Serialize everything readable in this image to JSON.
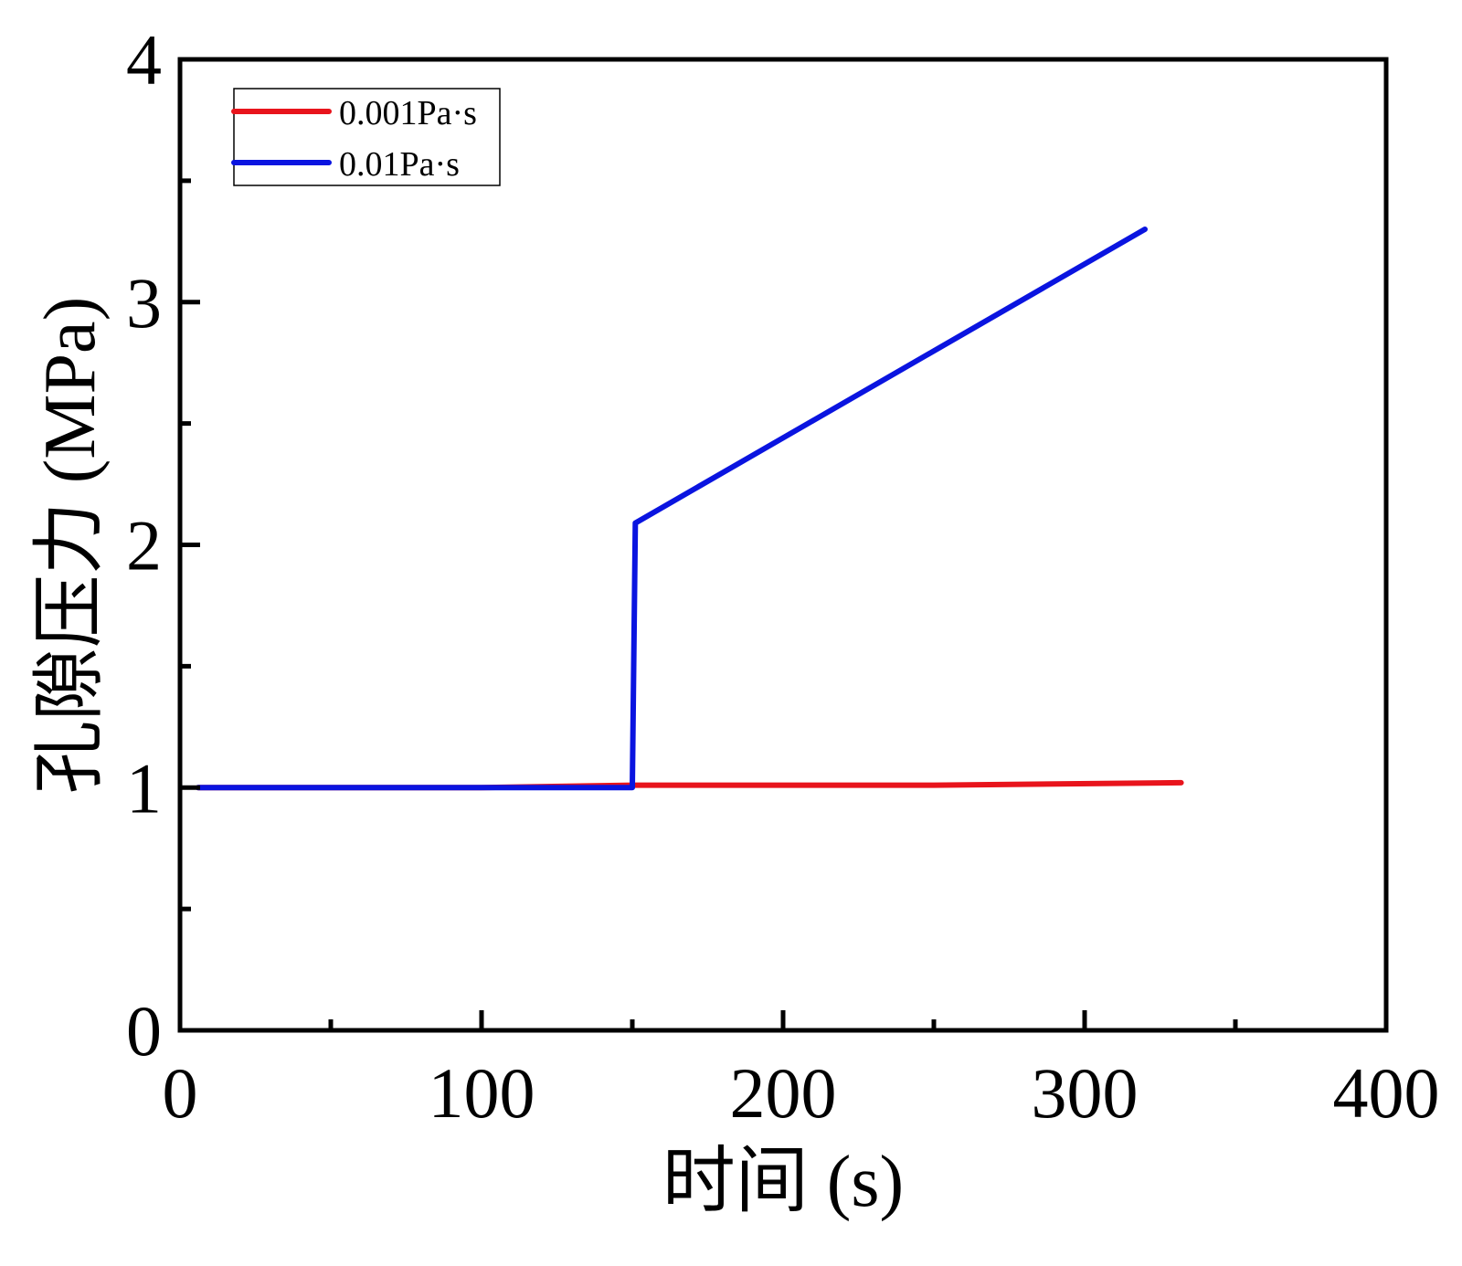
{
  "chart_data": {
    "type": "line",
    "title": "",
    "xlabel": "时间 (s)",
    "ylabel": "孔隙压力 (MPa)",
    "xlim": [
      0,
      400
    ],
    "ylim": [
      0,
      4
    ],
    "x_ticks": [
      0,
      100,
      200,
      300,
      400
    ],
    "x_tick_labels": [
      "0",
      "100",
      "200",
      "300",
      "400"
    ],
    "x_minor_ticks": [
      50,
      150,
      250,
      350
    ],
    "y_ticks": [
      0,
      1,
      2,
      3,
      4
    ],
    "y_tick_labels": [
      "0",
      "1",
      "2",
      "3",
      "4"
    ],
    "y_minor_ticks": [
      0.5,
      1.5,
      2.5,
      3.5
    ],
    "grid": false,
    "legend_position": "top-left",
    "series": [
      {
        "name": "0.001Pa·s",
        "color": "#e8141c",
        "x": [
          6,
          100,
          150,
          250,
          332
        ],
        "y": [
          1.0,
          1.0,
          1.01,
          1.01,
          1.02
        ]
      },
      {
        "name": "0.01Pa·s",
        "color": "#0a14e0",
        "x": [
          6,
          100,
          150,
          151,
          320
        ],
        "y": [
          1.0,
          1.0,
          1.0,
          2.09,
          3.3
        ]
      }
    ]
  }
}
